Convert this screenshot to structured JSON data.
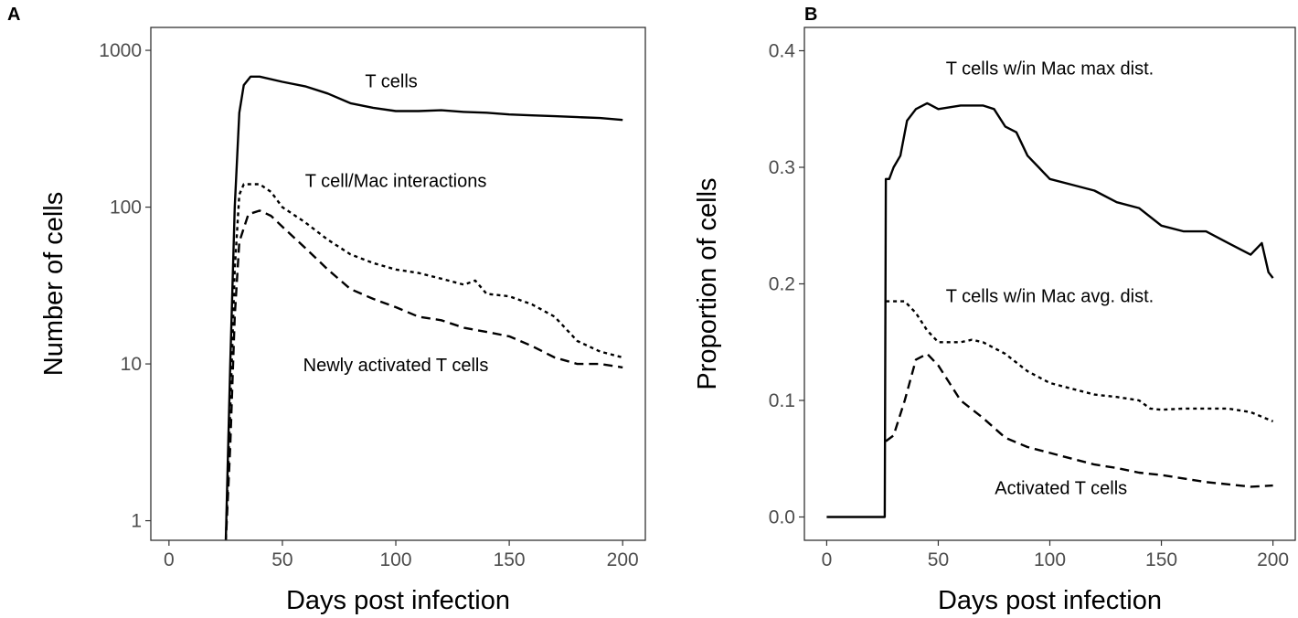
{
  "chart_data": [
    {
      "panel": "A",
      "type": "line",
      "xlabel": "Days post infection",
      "ylabel": "Number of cells",
      "xlim": [
        -8,
        210
      ],
      "ylim": [
        0.75,
        1400
      ],
      "yscale": "log",
      "xticks": [
        0,
        50,
        100,
        150,
        200
      ],
      "xtick_labels": [
        "0",
        "50",
        "100",
        "150",
        "200"
      ],
      "yticks": [
        1,
        10,
        100,
        1000
      ],
      "ytick_labels": [
        "1",
        "10",
        "100",
        "1000"
      ],
      "grid": false,
      "series": [
        {
          "name": "T cells",
          "style": "solid",
          "x": [
            25,
            27,
            29,
            31,
            33,
            36,
            40,
            50,
            60,
            70,
            80,
            90,
            100,
            110,
            120,
            130,
            140,
            150,
            160,
            170,
            180,
            190,
            200
          ],
          "y": [
            0.7,
            10,
            100,
            400,
            600,
            680,
            680,
            630,
            590,
            530,
            460,
            430,
            410,
            410,
            415,
            405,
            400,
            390,
            385,
            380,
            375,
            370,
            360
          ]
        },
        {
          "name": "T cell/Mac interactions",
          "style": "dotted",
          "x": [
            25,
            27,
            29,
            31,
            33,
            40,
            45,
            50,
            60,
            70,
            80,
            90,
            100,
            110,
            120,
            130,
            135,
            140,
            150,
            160,
            170,
            180,
            190,
            200
          ],
          "y": [
            0.7,
            5,
            40,
            120,
            140,
            140,
            125,
            100,
            80,
            62,
            50,
            44,
            40,
            38,
            35,
            32,
            34,
            28,
            27,
            24,
            20,
            14,
            12,
            11
          ]
        },
        {
          "name": "Newly activated T cells",
          "style": "dashed",
          "x": [
            25,
            27,
            29,
            31,
            35,
            40,
            45,
            50,
            60,
            70,
            80,
            90,
            100,
            110,
            120,
            130,
            140,
            150,
            160,
            170,
            180,
            190,
            200
          ],
          "y": [
            0.7,
            3,
            20,
            60,
            90,
            95,
            88,
            75,
            55,
            40,
            30,
            26,
            23,
            20,
            19,
            17,
            16,
            15,
            13,
            11,
            10,
            10,
            9.5
          ]
        }
      ],
      "annotations": [
        {
          "text": "T cells",
          "x": 98,
          "y": 640
        },
        {
          "text": "T cell/Mac interactions",
          "x": 100,
          "y": 148
        },
        {
          "text": "Newly activated T cells",
          "x": 100,
          "y": 9.9
        }
      ]
    },
    {
      "panel": "B",
      "type": "line",
      "xlabel": "Days post infection",
      "ylabel": "Proportion of cells",
      "xlim": [
        -10,
        210
      ],
      "ylim": [
        -0.02,
        0.42
      ],
      "yscale": "linear",
      "xticks": [
        0,
        50,
        100,
        150,
        200
      ],
      "xtick_labels": [
        "0",
        "50",
        "100",
        "150",
        "200"
      ],
      "yticks": [
        0,
        0.1,
        0.2,
        0.3,
        0.4
      ],
      "ytick_labels": [
        "0.0",
        "0.1",
        "0.2",
        "0.3",
        "0.4"
      ],
      "grid": false,
      "series": [
        {
          "name": "T cells w/in Mac max dist.",
          "style": "solid",
          "x": [
            0,
            26,
            26.5,
            28,
            30,
            33,
            36,
            40,
            45,
            50,
            60,
            70,
            75,
            80,
            85,
            90,
            95,
            100,
            110,
            120,
            130,
            140,
            150,
            160,
            170,
            180,
            190,
            195,
            198,
            200
          ],
          "y": [
            0,
            0,
            0.29,
            0.29,
            0.3,
            0.31,
            0.34,
            0.35,
            0.355,
            0.35,
            0.353,
            0.353,
            0.35,
            0.335,
            0.33,
            0.31,
            0.3,
            0.29,
            0.285,
            0.28,
            0.27,
            0.265,
            0.25,
            0.245,
            0.245,
            0.235,
            0.225,
            0.235,
            0.21,
            0.205
          ]
        },
        {
          "name": "T cells w/in Mac avg. dist.",
          "style": "dotted",
          "x": [
            26.5,
            30,
            35,
            40,
            45,
            50,
            60,
            65,
            70,
            80,
            90,
            100,
            110,
            120,
            130,
            140,
            145,
            150,
            160,
            170,
            180,
            190,
            200
          ],
          "y": [
            0.185,
            0.185,
            0.185,
            0.175,
            0.16,
            0.15,
            0.15,
            0.152,
            0.15,
            0.14,
            0.125,
            0.115,
            0.11,
            0.105,
            0.103,
            0.1,
            0.093,
            0.092,
            0.093,
            0.093,
            0.093,
            0.09,
            0.082
          ]
        },
        {
          "name": "Activated T cells",
          "style": "dashed",
          "x": [
            26.5,
            30,
            35,
            40,
            45,
            50,
            55,
            60,
            70,
            80,
            90,
            100,
            110,
            120,
            130,
            140,
            150,
            160,
            170,
            180,
            190,
            200
          ],
          "y": [
            0.065,
            0.07,
            0.1,
            0.135,
            0.14,
            0.13,
            0.115,
            0.1,
            0.085,
            0.068,
            0.06,
            0.055,
            0.05,
            0.045,
            0.042,
            0.038,
            0.036,
            0.033,
            0.03,
            0.028,
            0.026,
            0.027
          ]
        }
      ],
      "annotations": [
        {
          "text": "T cells w/in Mac max dist.",
          "x": 100,
          "y": 0.385
        },
        {
          "text": "T cells w/in Mac avg. dist.",
          "x": 100,
          "y": 0.19
        },
        {
          "text": "Activated T cells",
          "x": 105,
          "y": 0.025
        }
      ]
    }
  ]
}
